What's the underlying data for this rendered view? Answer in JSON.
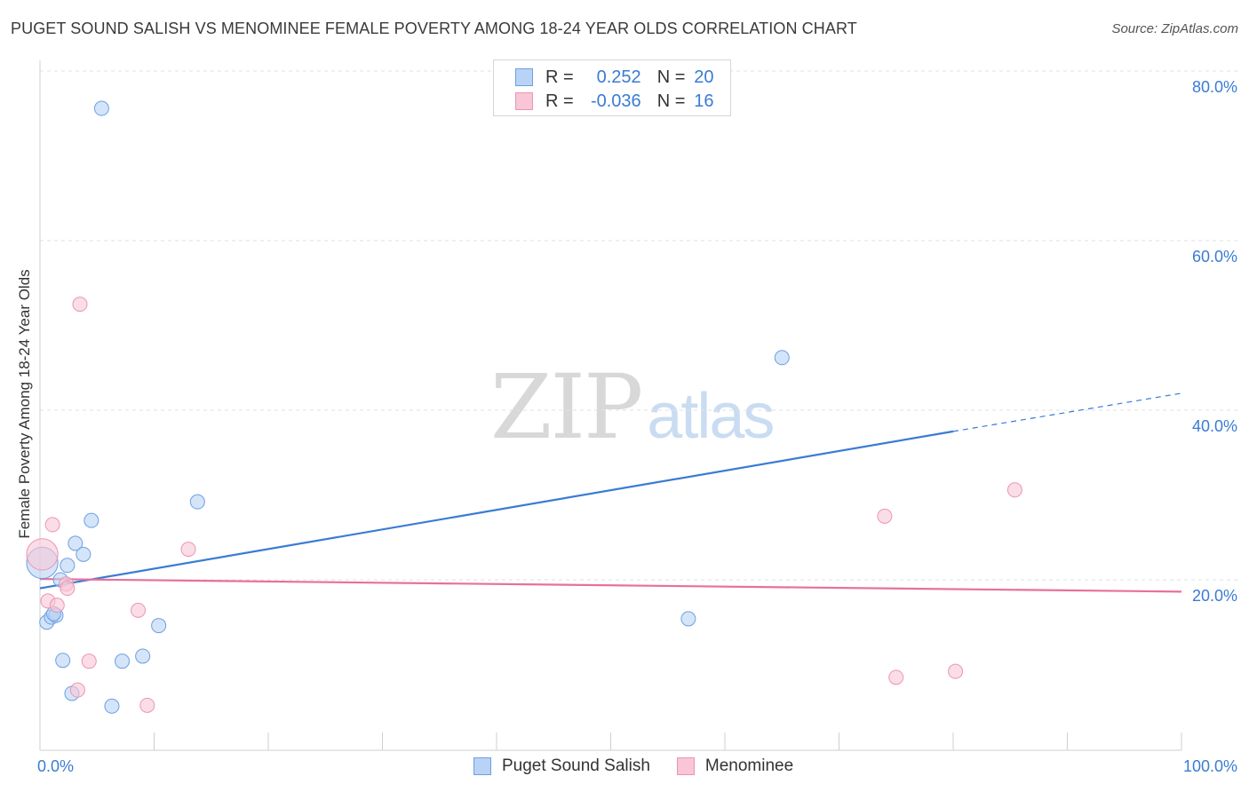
{
  "header": {
    "title": "PUGET SOUND SALISH VS MENOMINEE FEMALE POVERTY AMONG 18-24 YEAR OLDS CORRELATION CHART",
    "source": "Source: ZipAtlas.com"
  },
  "watermark": {
    "zip": "ZIP",
    "atlas": "atlas"
  },
  "legend": {
    "rows": [
      {
        "r_label": "R = ",
        "r_value": "0.252",
        "n_label": "N = ",
        "n_value": "20"
      },
      {
        "r_label": "R = ",
        "r_value": "-0.036",
        "n_label": "N = ",
        "n_value": "16"
      }
    ]
  },
  "bottom_legend": {
    "series1": "Puget Sound Salish",
    "series2": "Menominee"
  },
  "colors": {
    "blue": "#3a7bd5",
    "blue_fill": "#b8d3f5",
    "blue_edge": "#6d9fe0",
    "pink": "#e8709a",
    "pink_fill": "#f8c6d6",
    "pink_edge": "#ec94b4",
    "grid": "#e2e2e2",
    "tick_label": "#3a7bd5"
  },
  "chart_data": {
    "type": "scatter",
    "title": "PUGET SOUND SALISH VS MENOMINEE FEMALE POVERTY AMONG 18-24 YEAR OLDS CORRELATION CHART",
    "xlabel": "",
    "ylabel": "Female Poverty Among 18-24 Year Olds",
    "xlim": [
      0,
      100
    ],
    "ylim": [
      0,
      83
    ],
    "x_tick_labels": [
      {
        "value": 0,
        "label": "0.0%"
      },
      {
        "value": 100,
        "label": "100.0%"
      }
    ],
    "y_tick_labels": [
      {
        "value": 20,
        "label": "20.0%"
      },
      {
        "value": 40,
        "label": "40.0%"
      },
      {
        "value": 60,
        "label": "60.0%"
      },
      {
        "value": 80,
        "label": "80.0%"
      }
    ],
    "series": [
      {
        "name": "Puget Sound Salish",
        "color": "blue",
        "points": [
          [
            0.2,
            22.0,
            2.2
          ],
          [
            5.4,
            75.6,
            1
          ],
          [
            0.6,
            15.0,
            1
          ],
          [
            1.0,
            15.6,
            1
          ],
          [
            1.4,
            15.8,
            1
          ],
          [
            1.8,
            20.0,
            1
          ],
          [
            2.0,
            10.5,
            1
          ],
          [
            2.4,
            21.7,
            1
          ],
          [
            2.8,
            6.6,
            1
          ],
          [
            3.1,
            24.3,
            1
          ],
          [
            3.8,
            23.0,
            1
          ],
          [
            4.5,
            27.0,
            1
          ],
          [
            6.3,
            5.1,
            1
          ],
          [
            7.2,
            10.4,
            1
          ],
          [
            9.0,
            11.0,
            1
          ],
          [
            10.4,
            14.6,
            1
          ],
          [
            13.8,
            29.2,
            1
          ],
          [
            56.8,
            15.4,
            1
          ],
          [
            65.0,
            46.2,
            1
          ],
          [
            1.2,
            16.0,
            1
          ]
        ],
        "trend": {
          "x0": 0,
          "y0": 19.0,
          "x1": 80,
          "y1": 37.5,
          "dash_to_x": 100,
          "dash_to_y": 42.0
        }
      },
      {
        "name": "Menominee",
        "color": "pink",
        "points": [
          [
            0.2,
            23.0,
            2.2
          ],
          [
            0.7,
            17.5,
            1
          ],
          [
            1.1,
            26.5,
            1
          ],
          [
            1.5,
            17.0,
            1
          ],
          [
            2.3,
            19.5,
            1
          ],
          [
            2.4,
            19.0,
            1
          ],
          [
            3.3,
            7.0,
            1
          ],
          [
            3.5,
            52.5,
            1
          ],
          [
            4.3,
            10.4,
            1
          ],
          [
            8.6,
            16.4,
            1
          ],
          [
            9.4,
            5.2,
            1
          ],
          [
            13.0,
            23.6,
            1
          ],
          [
            74.0,
            27.5,
            1
          ],
          [
            75.0,
            8.5,
            1
          ],
          [
            80.2,
            9.2,
            1
          ],
          [
            85.4,
            30.6,
            1
          ]
        ],
        "trend": {
          "x0": 0,
          "y0": 20.1,
          "x1": 100,
          "y1": 18.6
        }
      }
    ]
  }
}
